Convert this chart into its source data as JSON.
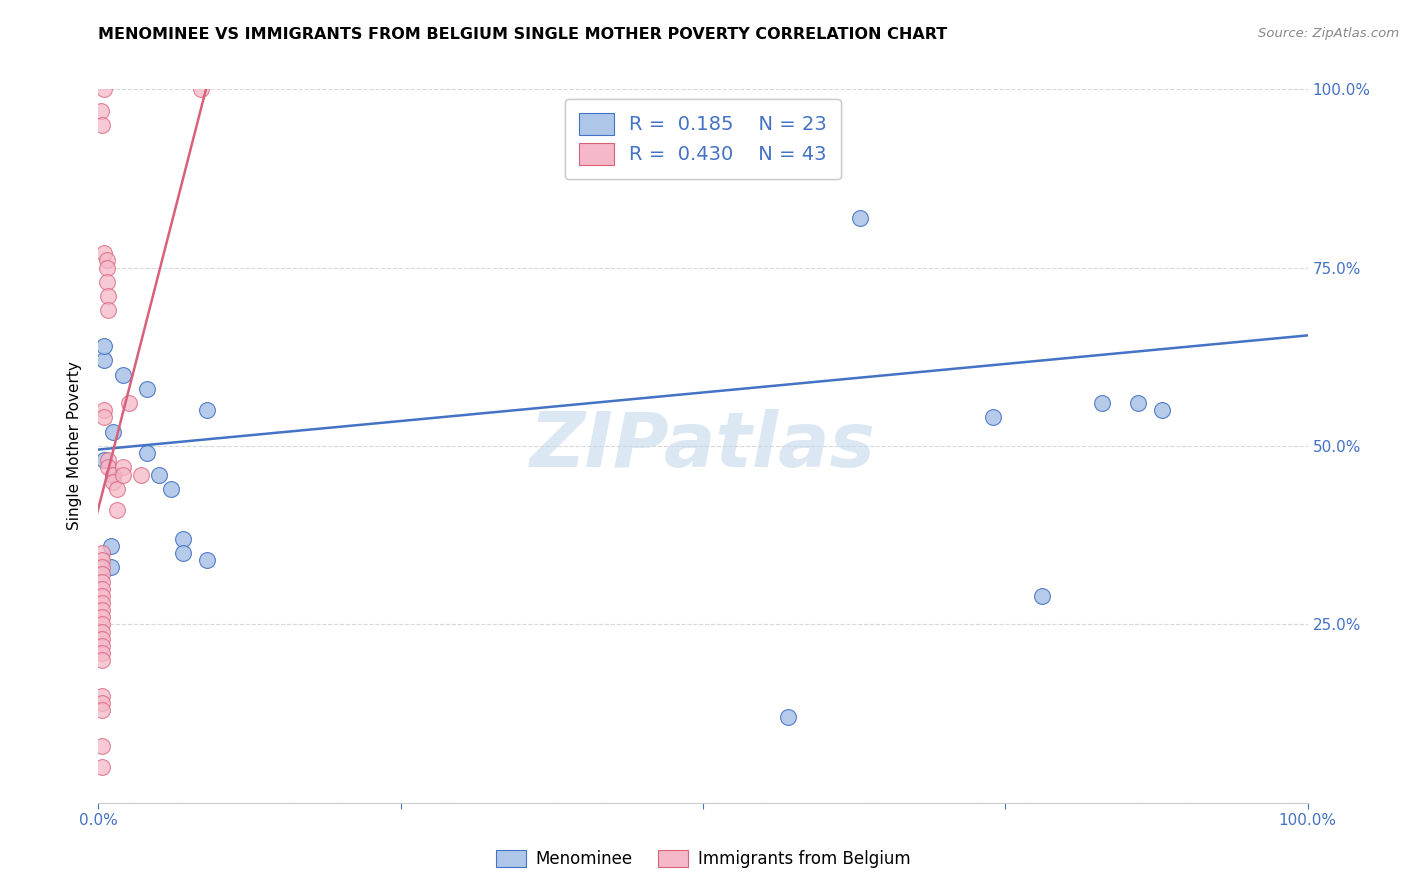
{
  "title": "MENOMINEE VS IMMIGRANTS FROM BELGIUM SINGLE MOTHER POVERTY CORRELATION CHART",
  "source": "Source: ZipAtlas.com",
  "ylabel": "Single Mother Poverty",
  "watermark": "ZIPatlas",
  "legend_blue_r": "0.185",
  "legend_blue_n": "23",
  "legend_pink_r": "0.430",
  "legend_pink_n": "43",
  "xlim": [
    0,
    1
  ],
  "ylim": [
    0,
    1
  ],
  "blue_color": "#aec6e8",
  "pink_color": "#f5b8c8",
  "blue_line_color": "#4472c4",
  "pink_line_color": "#d9607a",
  "legend_text_color": "#4472c4",
  "blue_scatter": [
    [
      0.005,
      0.48
    ],
    [
      0.005,
      0.62
    ],
    [
      0.005,
      0.64
    ],
    [
      0.01,
      0.36
    ],
    [
      0.01,
      0.33
    ],
    [
      0.012,
      0.52
    ],
    [
      0.012,
      0.46
    ],
    [
      0.02,
      0.6
    ],
    [
      0.04,
      0.58
    ],
    [
      0.04,
      0.49
    ],
    [
      0.05,
      0.46
    ],
    [
      0.06,
      0.44
    ],
    [
      0.07,
      0.37
    ],
    [
      0.07,
      0.35
    ],
    [
      0.09,
      0.55
    ],
    [
      0.09,
      0.34
    ],
    [
      0.57,
      0.12
    ],
    [
      0.63,
      0.82
    ],
    [
      0.74,
      0.54
    ],
    [
      0.78,
      0.29
    ],
    [
      0.83,
      0.56
    ],
    [
      0.86,
      0.56
    ],
    [
      0.88,
      0.55
    ]
  ],
  "pink_scatter": [
    [
      0.002,
      0.97
    ],
    [
      0.003,
      0.95
    ],
    [
      0.005,
      1.0
    ],
    [
      0.005,
      0.77
    ],
    [
      0.007,
      0.76
    ],
    [
      0.007,
      0.75
    ],
    [
      0.007,
      0.73
    ],
    [
      0.008,
      0.71
    ],
    [
      0.008,
      0.69
    ],
    [
      0.005,
      0.55
    ],
    [
      0.005,
      0.54
    ],
    [
      0.003,
      0.35
    ],
    [
      0.003,
      0.34
    ],
    [
      0.003,
      0.33
    ],
    [
      0.003,
      0.32
    ],
    [
      0.003,
      0.31
    ],
    [
      0.003,
      0.3
    ],
    [
      0.003,
      0.29
    ],
    [
      0.003,
      0.28
    ],
    [
      0.003,
      0.27
    ],
    [
      0.003,
      0.26
    ],
    [
      0.003,
      0.25
    ],
    [
      0.003,
      0.24
    ],
    [
      0.003,
      0.23
    ],
    [
      0.003,
      0.22
    ],
    [
      0.003,
      0.21
    ],
    [
      0.003,
      0.2
    ],
    [
      0.003,
      0.15
    ],
    [
      0.003,
      0.14
    ],
    [
      0.003,
      0.08
    ],
    [
      0.008,
      0.48
    ],
    [
      0.008,
      0.47
    ],
    [
      0.012,
      0.46
    ],
    [
      0.012,
      0.45
    ],
    [
      0.015,
      0.44
    ],
    [
      0.015,
      0.41
    ],
    [
      0.02,
      0.47
    ],
    [
      0.02,
      0.46
    ],
    [
      0.025,
      0.56
    ],
    [
      0.035,
      0.46
    ],
    [
      0.085,
      1.0
    ],
    [
      0.003,
      0.05
    ],
    [
      0.003,
      0.13
    ]
  ],
  "blue_trendline_x": [
    0,
    1.0
  ],
  "blue_trendline_y": [
    0.495,
    0.655
  ],
  "pink_trendline_x": [
    -0.005,
    0.092
  ],
  "pink_trendline_y": [
    0.38,
    1.02
  ],
  "background_color": "#ffffff",
  "grid_color": "#d8d8d8"
}
